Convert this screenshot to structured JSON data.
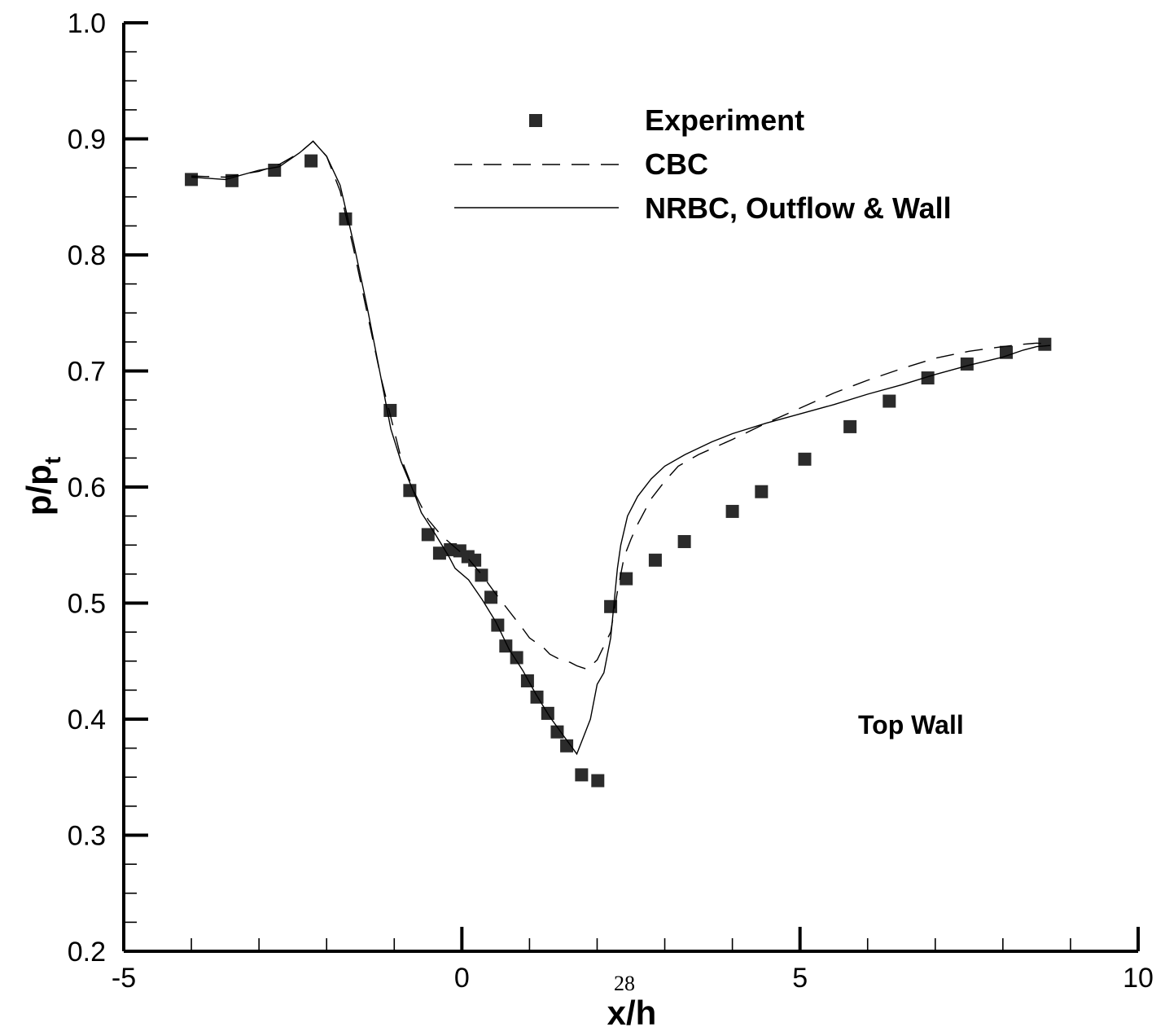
{
  "chart_data": {
    "type": "line",
    "xlabel": "x/h",
    "ylabel": {
      "main": "p/p",
      "sub": "t"
    },
    "xlim": [
      -5,
      10
    ],
    "ylim": [
      0.2,
      1.0
    ],
    "x_major_ticks": [
      -5,
      0,
      5,
      10
    ],
    "x_tick_labels": [
      "-5",
      "0",
      "5",
      "10"
    ],
    "x_minor_step": 1,
    "y_major_ticks": [
      0.2,
      0.3,
      0.4,
      0.5,
      0.6,
      0.7,
      0.8,
      0.9,
      1.0
    ],
    "y_tick_labels": [
      "0.2",
      "0.3",
      "0.4",
      "0.5",
      "0.6",
      "0.7",
      "0.8",
      "0.9",
      "1.0"
    ],
    "y_minor_step": 0.025,
    "grid": false,
    "legend_position": "top-right",
    "annotation": "Top Wall",
    "page_number": "28",
    "series": [
      {
        "name": "Experiment",
        "style": "square-markers",
        "color": "#2b2b2b",
        "points": [
          [
            -4.0,
            0.865
          ],
          [
            -3.4,
            0.864
          ],
          [
            -2.77,
            0.873
          ],
          [
            -2.23,
            0.881
          ],
          [
            -1.72,
            0.831
          ],
          [
            -1.06,
            0.666
          ],
          [
            -0.77,
            0.597
          ],
          [
            -0.5,
            0.559
          ],
          [
            -0.33,
            0.543
          ],
          [
            -0.17,
            0.546
          ],
          [
            -0.03,
            0.545
          ],
          [
            0.09,
            0.54
          ],
          [
            0.19,
            0.537
          ],
          [
            0.29,
            0.524
          ],
          [
            0.43,
            0.505
          ],
          [
            0.53,
            0.481
          ],
          [
            0.65,
            0.463
          ],
          [
            0.81,
            0.453
          ],
          [
            0.97,
            0.433
          ],
          [
            1.11,
            0.419
          ],
          [
            1.27,
            0.405
          ],
          [
            1.41,
            0.389
          ],
          [
            1.55,
            0.377
          ],
          [
            1.77,
            0.352
          ],
          [
            2.01,
            0.347
          ],
          [
            2.2,
            0.497
          ],
          [
            2.43,
            0.521
          ],
          [
            2.86,
            0.537
          ],
          [
            3.29,
            0.553
          ],
          [
            4.0,
            0.579
          ],
          [
            4.43,
            0.596
          ],
          [
            5.07,
            0.624
          ],
          [
            5.74,
            0.652
          ],
          [
            6.32,
            0.674
          ],
          [
            6.89,
            0.694
          ],
          [
            7.47,
            0.706
          ],
          [
            8.05,
            0.716
          ],
          [
            8.62,
            0.723
          ]
        ]
      },
      {
        "name": "CBC",
        "style": "dashed",
        "color": "#000000",
        "points": [
          [
            -4.0,
            0.868
          ],
          [
            -3.5,
            0.867
          ],
          [
            -3.0,
            0.872
          ],
          [
            -2.7,
            0.878
          ],
          [
            -2.4,
            0.888
          ],
          [
            -2.2,
            0.898
          ],
          [
            -2.0,
            0.885
          ],
          [
            -1.8,
            0.855
          ],
          [
            -1.6,
            0.805
          ],
          [
            -1.4,
            0.75
          ],
          [
            -1.2,
            0.695
          ],
          [
            -1.05,
            0.66
          ],
          [
            -0.9,
            0.625
          ],
          [
            -0.7,
            0.595
          ],
          [
            -0.5,
            0.572
          ],
          [
            -0.3,
            0.558
          ],
          [
            -0.1,
            0.548
          ],
          [
            0.1,
            0.538
          ],
          [
            0.3,
            0.524
          ],
          [
            0.5,
            0.508
          ],
          [
            0.7,
            0.493
          ],
          [
            0.9,
            0.478
          ],
          [
            1.0,
            0.47
          ],
          [
            1.1,
            0.466
          ],
          [
            1.2,
            0.462
          ],
          [
            1.3,
            0.456
          ],
          [
            1.5,
            0.45
          ],
          [
            1.6,
            0.449
          ],
          [
            1.7,
            0.446
          ],
          [
            1.8,
            0.444
          ],
          [
            1.85,
            0.443
          ],
          [
            2.0,
            0.451
          ],
          [
            2.2,
            0.475
          ],
          [
            2.3,
            0.51
          ],
          [
            2.4,
            0.54
          ],
          [
            2.5,
            0.555
          ],
          [
            2.6,
            0.568
          ],
          [
            2.8,
            0.59
          ],
          [
            3.0,
            0.605
          ],
          [
            3.2,
            0.618
          ],
          [
            3.5,
            0.628
          ],
          [
            4.0,
            0.641
          ],
          [
            4.5,
            0.655
          ],
          [
            5.0,
            0.668
          ],
          [
            5.5,
            0.681
          ],
          [
            6.0,
            0.692
          ],
          [
            6.5,
            0.702
          ],
          [
            7.0,
            0.711
          ],
          [
            7.5,
            0.717
          ],
          [
            8.0,
            0.721
          ],
          [
            8.3,
            0.723
          ],
          [
            8.5,
            0.724
          ],
          [
            8.7,
            0.723
          ]
        ]
      },
      {
        "name": "NRBC, Outflow & Wall",
        "style": "solid",
        "color": "#000000",
        "points": [
          [
            -4.0,
            0.867
          ],
          [
            -3.5,
            0.865
          ],
          [
            -3.0,
            0.873
          ],
          [
            -2.7,
            0.876
          ],
          [
            -2.4,
            0.888
          ],
          [
            -2.2,
            0.898
          ],
          [
            -2.0,
            0.885
          ],
          [
            -1.8,
            0.86
          ],
          [
            -1.6,
            0.81
          ],
          [
            -1.4,
            0.755
          ],
          [
            -1.2,
            0.695
          ],
          [
            -1.05,
            0.65
          ],
          [
            -0.9,
            0.622
          ],
          [
            -0.7,
            0.594
          ],
          [
            -0.6,
            0.578
          ],
          [
            -0.4,
            0.56
          ],
          [
            -0.2,
            0.541
          ],
          [
            -0.1,
            0.53
          ],
          [
            0.1,
            0.52
          ],
          [
            0.3,
            0.503
          ],
          [
            0.5,
            0.484
          ],
          [
            0.7,
            0.46
          ],
          [
            0.9,
            0.442
          ],
          [
            1.1,
            0.421
          ],
          [
            1.3,
            0.402
          ],
          [
            1.5,
            0.386
          ],
          [
            1.65,
            0.374
          ],
          [
            1.7,
            0.37
          ],
          [
            1.8,
            0.385
          ],
          [
            1.9,
            0.4
          ],
          [
            2.0,
            0.43
          ],
          [
            2.1,
            0.44
          ],
          [
            2.2,
            0.47
          ],
          [
            2.3,
            0.53
          ],
          [
            2.35,
            0.55
          ],
          [
            2.45,
            0.575
          ],
          [
            2.6,
            0.592
          ],
          [
            2.8,
            0.607
          ],
          [
            3.0,
            0.618
          ],
          [
            3.3,
            0.628
          ],
          [
            3.7,
            0.639
          ],
          [
            4.0,
            0.646
          ],
          [
            4.5,
            0.655
          ],
          [
            5.0,
            0.663
          ],
          [
            5.5,
            0.671
          ],
          [
            6.0,
            0.68
          ],
          [
            6.5,
            0.688
          ],
          [
            7.0,
            0.697
          ],
          [
            7.5,
            0.705
          ],
          [
            8.0,
            0.712
          ],
          [
            8.3,
            0.718
          ],
          [
            8.5,
            0.721
          ],
          [
            8.7,
            0.722
          ]
        ]
      }
    ]
  }
}
